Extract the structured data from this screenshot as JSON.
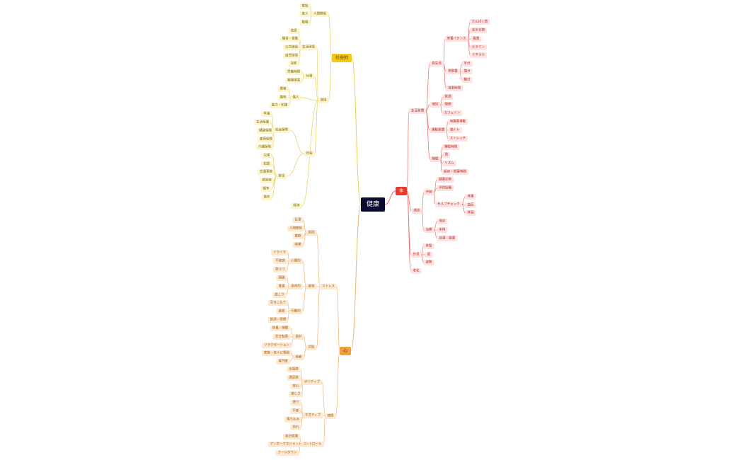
{
  "center": {
    "label": "健康",
    "children": [
      {
        "label": "体",
        "children": [
          {
            "label": "生活習慣",
            "children": [
              {
                "label": "食生活",
                "children": [
                  {
                    "label": "栄養バランス",
                    "children": [
                      {
                        "label": "たんぱく質"
                      },
                      {
                        "label": "炭水化物"
                      },
                      {
                        "label": "脂質"
                      },
                      {
                        "label": "ビタミン"
                      },
                      {
                        "label": "ミネラル"
                      }
                    ]
                  },
                  {
                    "label": "摂取量",
                    "children": [
                      {
                        "label": "水分"
                      },
                      {
                        "label": "塩分"
                      },
                      {
                        "label": "糖分"
                      }
                    ]
                  },
                  {
                    "label": "食事時間"
                  }
                ]
              },
              {
                "label": "嗜好",
                "children": [
                  {
                    "label": "飲酒"
                  },
                  {
                    "label": "喫煙"
                  },
                  {
                    "label": "カフェイン"
                  }
                ]
              },
              {
                "label": "運動習慣",
                "children": [
                  {
                    "label": "有酸素運動"
                  },
                  {
                    "label": "筋トレ"
                  },
                  {
                    "label": "ストレッチ"
                  }
                ]
              },
              {
                "label": "睡眠",
                "children": [
                  {
                    "label": "睡眠時間"
                  },
                  {
                    "label": "質"
                  },
                  {
                    "label": "リズム"
                  },
                  {
                    "label": "起床・就寝時間"
                  }
                ]
              }
            ]
          },
          {
            "label": "病気",
            "children": [
              {
                "label": "予防",
                "children": [
                  {
                    "label": "健康診断"
                  },
                  {
                    "label": "予防接種"
                  },
                  {
                    "label": "セルフチェック",
                    "children": [
                      {
                        "label": "体重"
                      },
                      {
                        "label": "血圧"
                      },
                      {
                        "label": "体温"
                      }
                    ]
                  }
                ]
              },
              {
                "label": "治療",
                "children": [
                  {
                    "label": "受診"
                  },
                  {
                    "label": "手術"
                  },
                  {
                    "label": "投薬・服薬"
                  }
                ]
              }
            ]
          },
          {
            "label": "外見",
            "children": [
              {
                "label": "体型"
              },
              {
                "label": "肌"
              },
              {
                "label": "姿勢"
              }
            ]
          },
          {
            "label": "老化"
          }
        ]
      },
      {
        "label": "社会的",
        "children": [
          {
            "label": "人間関係",
            "children": [
              {
                "label": "家族"
              },
              {
                "label": "友人"
              },
              {
                "label": "職場"
              }
            ]
          },
          {
            "label": "環境",
            "children": [
              {
                "label": "生活環境",
                "children": [
                  {
                    "label": "住居"
                  },
                  {
                    "label": "騒音・振動"
                  },
                  {
                    "label": "公共施設"
                  },
                  {
                    "label": "自然環境"
                  },
                  {
                    "label": "治安"
                  }
                ]
              },
              {
                "label": "仕事",
                "children": [
                  {
                    "label": "労働時間"
                  },
                  {
                    "label": "職場環境"
                  }
                ]
              },
              {
                "label": "個人",
                "children": [
                  {
                    "label": "資格"
                  },
                  {
                    "label": "趣味"
                  },
                  {
                    "label": "能力・知識"
                  }
                ]
              },
              {
                "label": "社会",
                "children": [
                  {
                    "label": "社会保障",
                    "children": [
                      {
                        "label": "年金"
                      },
                      {
                        "label": "生活保護"
                      },
                      {
                        "label": "健康保険"
                      },
                      {
                        "label": "雇用保険"
                      },
                      {
                        "label": "介護保険"
                      }
                    ]
                  },
                  {
                    "label": "安全",
                    "children": [
                      {
                        "label": "災害"
                      },
                      {
                        "label": "犯罪"
                      },
                      {
                        "label": "交通事故"
                      },
                      {
                        "label": "感染症"
                      },
                      {
                        "label": "戦争"
                      },
                      {
                        "label": "事件"
                      }
                    ]
                  }
                ]
              },
              {
                "label": "経済"
              }
            ]
          }
        ]
      },
      {
        "label": "心",
        "children": [
          {
            "label": "ストレス",
            "children": [
              {
                "label": "原因",
                "children": [
                  {
                    "label": "仕事"
                  },
                  {
                    "label": "人間関係"
                  },
                  {
                    "label": "家庭"
                  },
                  {
                    "label": "将来"
                  }
                ]
              },
              {
                "label": "症状",
                "children": [
                  {
                    "label": "心理的",
                    "children": [
                      {
                        "label": "イライラ"
                      },
                      {
                        "label": "不安感"
                      },
                      {
                        "label": "抑うつ"
                      }
                    ]
                  },
                  {
                    "label": "身体的",
                    "children": [
                      {
                        "label": "頭痛"
                      },
                      {
                        "label": "胃痛"
                      },
                      {
                        "label": "肩こり"
                      }
                    ]
                  },
                  {
                    "label": "行動的",
                    "children": [
                      {
                        "label": "引きこもり"
                      },
                      {
                        "label": "過食"
                      },
                      {
                        "label": "飲酒・喫煙"
                      }
                    ]
                  }
                ]
              },
              {
                "label": "対処",
                "children": [
                  {
                    "label": "自分",
                    "children": [
                      {
                        "label": "休養・睡眠"
                      },
                      {
                        "label": "気分転換"
                      },
                      {
                        "label": "リラクゼーション"
                      }
                    ]
                  },
                  {
                    "label": "他者",
                    "children": [
                      {
                        "label": "家族・友人に相談"
                      },
                      {
                        "label": "専門家"
                      }
                    ]
                  }
                ]
              }
            ]
          },
          {
            "label": "感情",
            "children": [
              {
                "label": "ポジティブ",
                "children": [
                  {
                    "label": "幸福感"
                  },
                  {
                    "label": "満足感"
                  },
                  {
                    "label": "安心"
                  },
                  {
                    "label": "楽しさ"
                  }
                ]
              },
              {
                "label": "ネガティブ",
                "children": [
                  {
                    "label": "怒り"
                  },
                  {
                    "label": "不安"
                  },
                  {
                    "label": "落ち込み"
                  },
                  {
                    "label": "恐れ"
                  }
                ]
              },
              {
                "label": "コントロール",
                "children": [
                  {
                    "label": "自己認識"
                  },
                  {
                    "label": "アンガーマネジメント"
                  },
                  {
                    "label": "クールダウン"
                  }
                ]
              }
            ]
          }
        ]
      }
    ]
  }
}
